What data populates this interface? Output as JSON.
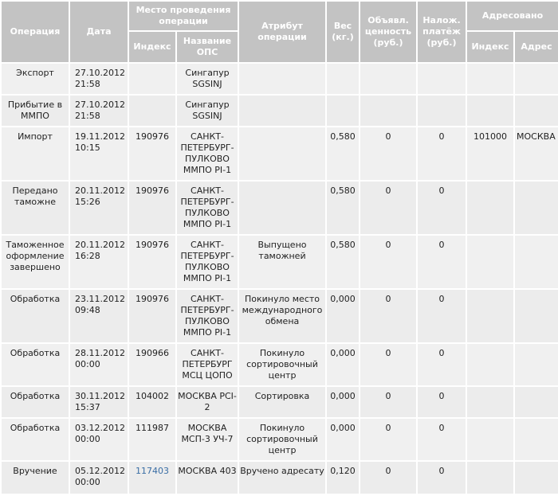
{
  "headers": {
    "operation": "Операция",
    "date": "Дата",
    "place": "Место проведения операции",
    "index": "Индекс",
    "ops_name": "Название ОПС",
    "attribute": "Атрибут операции",
    "weight": "Вес (кг.)",
    "declared_value": "Объявл. ценность (руб.)",
    "cod": "Налож. платёж (руб.)",
    "addressed": "Адресовано",
    "addr_index": "Индекс",
    "addr_address": "Адрес"
  },
  "rows": [
    {
      "operation": "Экспорт",
      "date": "27.10.2012",
      "time": "21:58",
      "index": "",
      "ops": "Сингапур SGSINJ",
      "attr": "",
      "weight": "",
      "value": "",
      "cod": "",
      "addr_index": "",
      "addr": ""
    },
    {
      "operation": "Прибытие в ММПО",
      "date": "27.10.2012",
      "time": "21:58",
      "index": "",
      "ops": "Сингапур SGSINJ",
      "attr": "",
      "weight": "",
      "value": "",
      "cod": "",
      "addr_index": "",
      "addr": ""
    },
    {
      "operation": "Импорт",
      "date": "19.11.2012",
      "time": "10:15",
      "index": "190976",
      "ops": "САНКТ-ПЕТЕРБУРГ-ПУЛКОВО ММПО PI-1",
      "attr": "",
      "weight": "0,580",
      "value": "0",
      "cod": "0",
      "addr_index": "101000",
      "addr": "МОСКВА"
    },
    {
      "operation": "Передано таможне",
      "date": "20.11.2012",
      "time": "15:26",
      "index": "190976",
      "ops": "САНКТ-ПЕТЕРБУРГ-ПУЛКОВО ММПО PI-1",
      "attr": "",
      "weight": "0,580",
      "value": "0",
      "cod": "0",
      "addr_index": "",
      "addr": ""
    },
    {
      "operation": "Таможенное оформление завершено",
      "date": "20.11.2012",
      "time": "16:28",
      "index": "190976",
      "ops": "САНКТ-ПЕТЕРБУРГ-ПУЛКОВО ММПО PI-1",
      "attr": "Выпущено таможней",
      "weight": "0,580",
      "value": "0",
      "cod": "0",
      "addr_index": "",
      "addr": ""
    },
    {
      "operation": "Обработка",
      "date": "23.11.2012",
      "time": "09:48",
      "index": "190976",
      "ops": "САНКТ-ПЕТЕРБУРГ-ПУЛКОВО ММПО PI-1",
      "attr": "Покинуло место международного обмена",
      "weight": "0,000",
      "value": "0",
      "cod": "0",
      "addr_index": "",
      "addr": ""
    },
    {
      "operation": "Обработка",
      "date": "28.11.2012",
      "time": "00:00",
      "index": "190966",
      "ops": "САНКТ-ПЕТЕРБУРГ МСЦ ЦОПО",
      "attr": "Покинуло сортировочный центр",
      "weight": "0,000",
      "value": "0",
      "cod": "0",
      "addr_index": "",
      "addr": ""
    },
    {
      "operation": "Обработка",
      "date": "30.11.2012",
      "time": "15:37",
      "index": "104002",
      "ops": "МОСКВА PCI-2",
      "attr": "Сортировка",
      "weight": "0,000",
      "value": "0",
      "cod": "0",
      "addr_index": "",
      "addr": ""
    },
    {
      "operation": "Обработка",
      "date": "03.12.2012",
      "time": "00:00",
      "index": "111987",
      "ops": "МОСКВА МСП-3 УЧ-7",
      "attr": "Покинуло сортировочный центр",
      "weight": "0,000",
      "value": "0",
      "cod": "0",
      "addr_index": "",
      "addr": ""
    },
    {
      "operation": "Вручение",
      "date": "05.12.2012",
      "time": "00:00",
      "index": "117403",
      "index_link": true,
      "ops": "МОСКВА 403",
      "attr": "Вручено адресату",
      "weight": "0,120",
      "value": "0",
      "cod": "0",
      "addr_index": "",
      "addr": ""
    }
  ],
  "colors": {
    "header_bg": "#c3c3c3",
    "header_text": "#ffffff",
    "row_bg": "#efefef",
    "link": "#3a6ea5"
  }
}
